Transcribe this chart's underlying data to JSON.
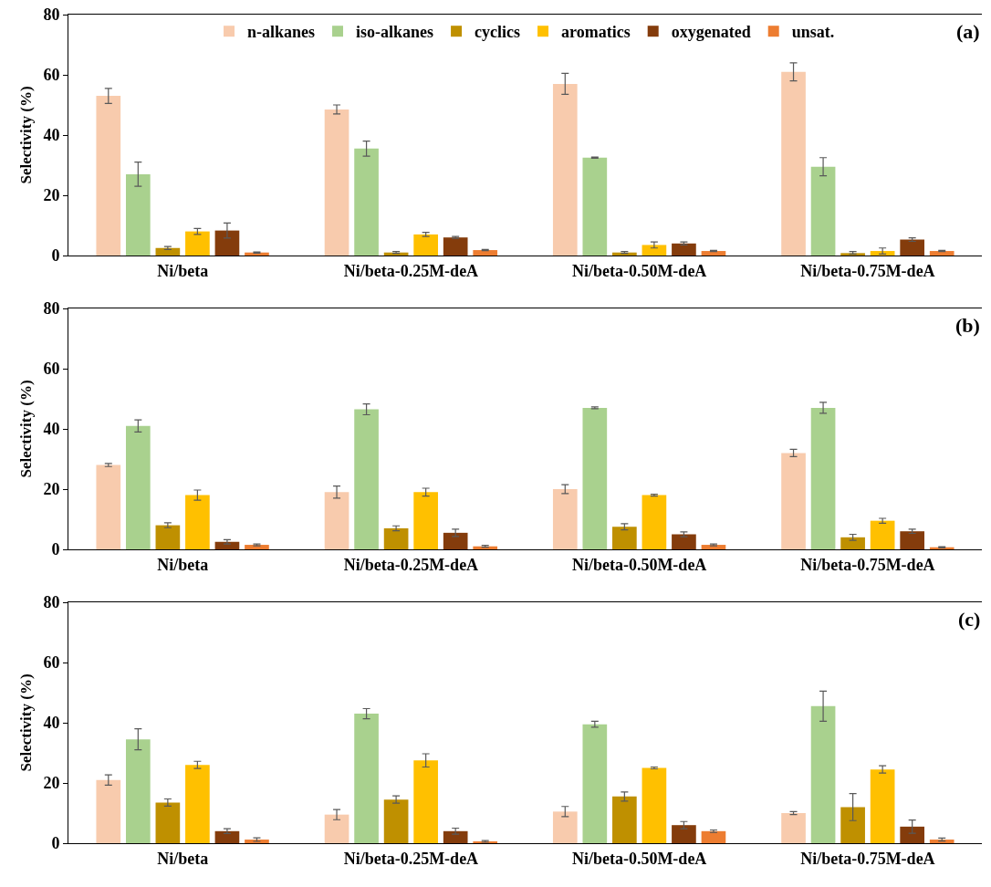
{
  "chart_data": [
    {
      "type": "bar",
      "ylabel": "Selectivity (%)",
      "annotations": [
        "(a)"
      ],
      "categories": [
        "Ni/beta",
        "Ni/beta-0.25M-deA",
        "Ni/beta-0.50M-deA",
        "Ni/beta-0.75M-deA"
      ],
      "ylim": [
        0,
        80
      ],
      "yticks": [
        0,
        20,
        40,
        60,
        80
      ],
      "grid": false,
      "legend": "top",
      "series": [
        {
          "name": "n-alkanes",
          "color": "#f8cbad",
          "values": [
            53,
            48.5,
            57,
            61
          ],
          "errors": [
            2.5,
            1.5,
            3.5,
            3
          ]
        },
        {
          "name": "iso-alkanes",
          "color": "#a9d18e",
          "values": [
            27,
            35.5,
            32.5,
            29.5
          ],
          "errors": [
            4,
            2.5,
            0.2,
            3
          ]
        },
        {
          "name": "cyclics",
          "color": "#bf9000",
          "values": [
            2.5,
            1,
            1,
            0.8
          ],
          "errors": [
            0.5,
            0.3,
            0.3,
            [
              0.3,
              0.5
            ]
          ]
        },
        {
          "name": "aromatics",
          "color": "#ffc000",
          "values": [
            8,
            7,
            3.5,
            1.5
          ],
          "errors": [
            1,
            0.7,
            1,
            1
          ]
        },
        {
          "name": "oxygenated",
          "color": "#843c0c",
          "values": [
            8.3,
            6,
            4,
            5.3
          ],
          "errors": [
            2.5,
            0.3,
            0.5,
            0.6
          ]
        },
        {
          "name": "unsat.",
          "color": "#ed7d31",
          "values": [
            1,
            1.8,
            1.5,
            1.5
          ],
          "errors": [
            0.2,
            0.2,
            0.2,
            0.2
          ]
        }
      ]
    },
    {
      "type": "bar",
      "ylabel": "Selectivity (%)",
      "annotations": [
        "(b)"
      ],
      "categories": [
        "Ni/beta",
        "Ni/beta-0.25M-deA",
        "Ni/beta-0.50M-deA",
        "Ni/beta-0.75M-deA"
      ],
      "ylim": [
        0,
        80
      ],
      "yticks": [
        0,
        20,
        40,
        60,
        80
      ],
      "grid": false,
      "legend": false,
      "series": [
        {
          "color": "#f8cbad",
          "values": [
            28,
            19,
            20,
            32
          ],
          "errors": [
            0.5,
            2,
            1.5,
            1.2
          ]
        },
        {
          "color": "#a9d18e",
          "values": [
            41,
            46.5,
            47,
            47
          ],
          "errors": [
            2,
            1.8,
            0.3,
            1.8
          ]
        },
        {
          "color": "#bf9000",
          "values": [
            8,
            7,
            7.5,
            4
          ],
          "errors": [
            0.8,
            0.8,
            1,
            1
          ]
        },
        {
          "color": "#ffc000",
          "values": [
            18,
            19,
            18,
            9.5
          ],
          "errors": [
            1.7,
            1.3,
            0.3,
            0.8
          ]
        },
        {
          "color": "#843c0c",
          "values": [
            2.5,
            5.5,
            5,
            6
          ],
          "errors": [
            0.7,
            1.2,
            0.8,
            0.7
          ]
        },
        {
          "color": "#ed7d31",
          "values": [
            1.5,
            1,
            1.5,
            0.7
          ],
          "errors": [
            0.3,
            0.3,
            0.3,
            0.2
          ]
        }
      ]
    },
    {
      "type": "bar",
      "ylabel": "Selectivity (%)",
      "annotations": [
        "(c)"
      ],
      "categories": [
        "Ni/beta",
        "Ni/beta-0.25M-deA",
        "Ni/beta-0.50M-deA",
        "Ni/beta-0.75M-deA"
      ],
      "ylim": [
        0,
        80
      ],
      "yticks": [
        0,
        20,
        40,
        60,
        80
      ],
      "grid": false,
      "legend": false,
      "series": [
        {
          "color": "#f8cbad",
          "values": [
            21,
            9.5,
            10.5,
            10
          ],
          "errors": [
            1.7,
            1.7,
            1.7,
            0.5
          ]
        },
        {
          "color": "#a9d18e",
          "values": [
            34.5,
            43,
            39.5,
            45.5
          ],
          "errors": [
            3.5,
            1.7,
            1,
            5
          ]
        },
        {
          "color": "#bf9000",
          "values": [
            13.5,
            14.5,
            15.5,
            12
          ],
          "errors": [
            1.2,
            1.2,
            1.5,
            4.5
          ]
        },
        {
          "color": "#ffc000",
          "values": [
            26,
            27.5,
            25,
            24.5
          ],
          "errors": [
            1.2,
            2.2,
            0.3,
            1.2
          ]
        },
        {
          "color": "#843c0c",
          "values": [
            4,
            4,
            6,
            5.5
          ],
          "errors": [
            0.8,
            1,
            1.2,
            2.2
          ]
        },
        {
          "color": "#ed7d31",
          "values": [
            1.2,
            0.6,
            4,
            1.2
          ],
          "errors": [
            0.6,
            0.3,
            0.4,
            0.5
          ]
        }
      ]
    }
  ]
}
